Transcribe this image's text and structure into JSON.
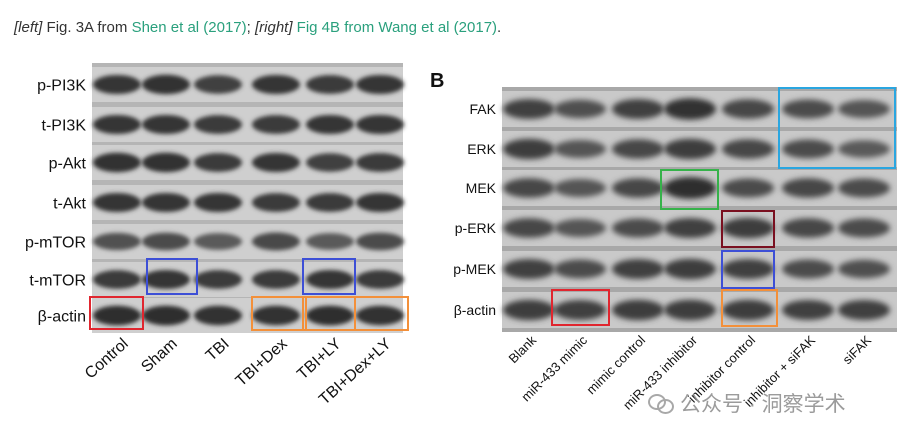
{
  "caption": {
    "left_tag": "[left]",
    "left_text": " Fig. 3A from ",
    "left_link": "Shen et al (2017)",
    "mid_text": "; ",
    "right_tag": "[right]",
    "right_link": "Fig 4B from Wang et al (2017)",
    "end_text": "."
  },
  "left_panel": {
    "rows": [
      "p-PI3K",
      "t-PI3K",
      "p-Akt",
      "t-Akt",
      "p-mTOR",
      "t-mTOR",
      "β-actin"
    ],
    "lanes": [
      "Control",
      "Sham",
      "TBI",
      "TBI+Dex",
      "TBI+LY",
      "TBI+Dex+LY"
    ]
  },
  "right_panel": {
    "panel_label": "B",
    "rows": [
      "FAK",
      "ERK",
      "MEK",
      "p-ERK",
      "p-MEK",
      "β-actin"
    ],
    "lanes": [
      "Blank",
      "miR-433 mimic",
      "mimic control",
      "miR-433 inhibitor",
      "inhibitor control",
      "inhibitor + siFAK",
      "siFAK"
    ]
  },
  "watermark": {
    "text": "公众号 · 洞察学术"
  },
  "colors": {
    "red": "#e0262f",
    "blue": "#3d4fd6",
    "orange": "#f3903a",
    "cyan": "#2aa6e0",
    "green": "#36b24a",
    "maroon": "#7a1020"
  }
}
